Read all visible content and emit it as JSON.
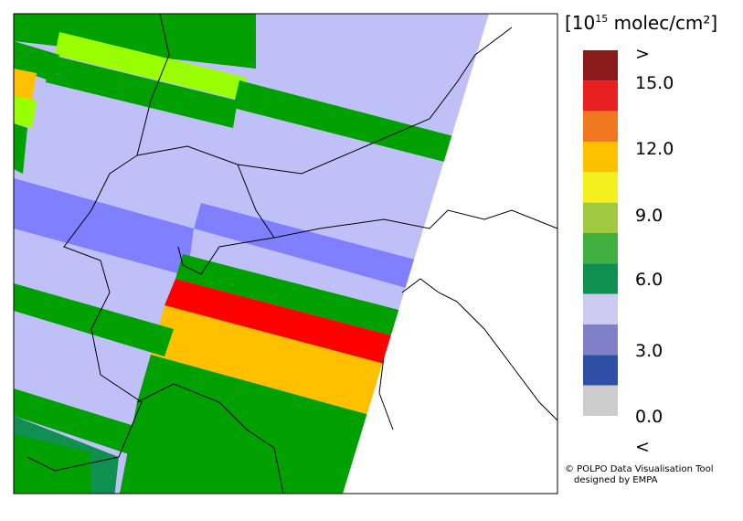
{
  "legend": {
    "unit_prefix": "[10",
    "unit_exponent": "15",
    "unit_suffix": " molec/cm²]",
    "swatches": [
      "#8b1a1a",
      "#e82020",
      "#f07820",
      "#ffc000",
      "#f4f020",
      "#a0c840",
      "#40b040",
      "#109050",
      "#cccaf0",
      "#8080c8",
      "#3050a8",
      "#cccccc"
    ],
    "labels": [
      ">",
      "15.0",
      "12.0",
      "9.0",
      "6.0",
      "3.0",
      "0.0",
      "<"
    ]
  },
  "credit": {
    "line1": "© POLPO Data Visualisation Tool",
    "line2": "designed by EMPA"
  }
}
